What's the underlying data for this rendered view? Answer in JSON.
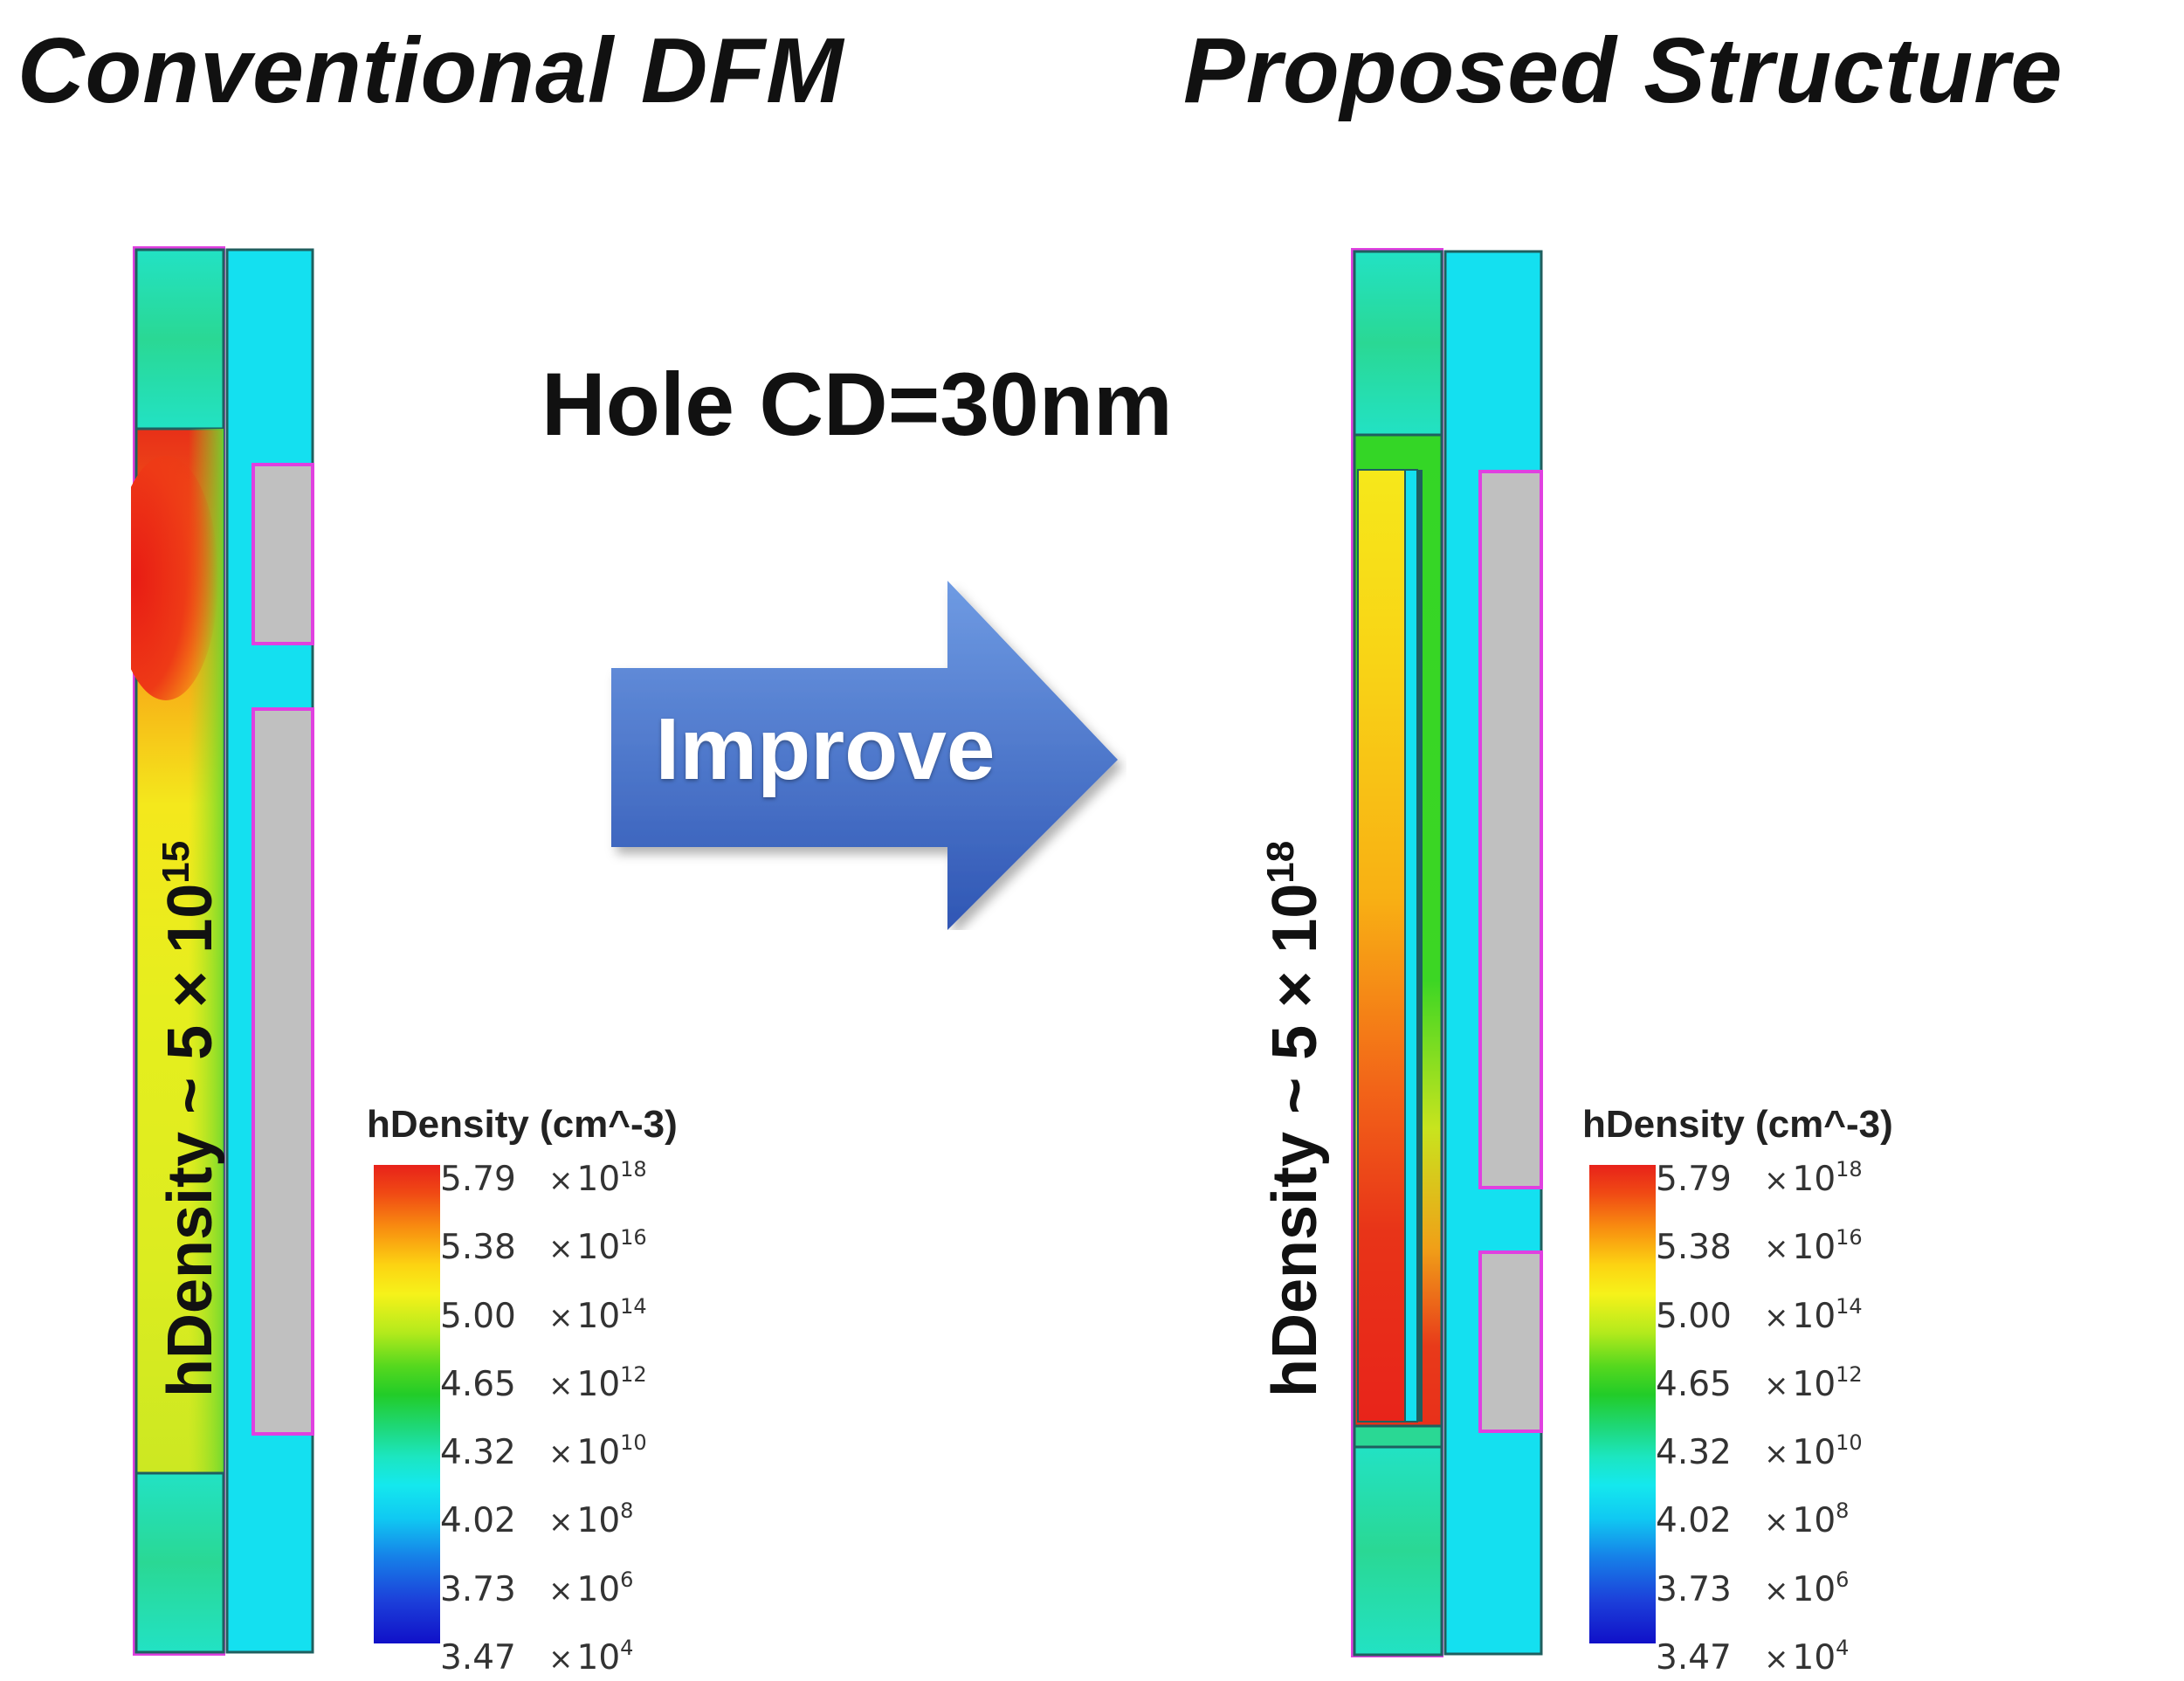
{
  "titles": {
    "left": "Conventional DFM",
    "right": "Proposed Structure"
  },
  "hole_cd": "Hole CD=30nm",
  "arrow": {
    "label": "Improve",
    "color_light": "#6f9be3",
    "color_dark": "#2f56b4"
  },
  "annotations": {
    "left": {
      "base": "hDensity ~ 5 × 10",
      "exp": "15"
    },
    "right": {
      "base": "hDensity ~ 5 × 10",
      "exp": "18"
    }
  },
  "legend": {
    "title": "hDensity (cm^-3)",
    "times": "×",
    "base": "10",
    "ticks": [
      {
        "value": "5.79",
        "exp": "18"
      },
      {
        "value": "5.38",
        "exp": "16"
      },
      {
        "value": "5.00",
        "exp": "14"
      },
      {
        "value": "4.65",
        "exp": "12"
      },
      {
        "value": "4.32",
        "exp": "10"
      },
      {
        "value": "4.02",
        "exp": "8"
      },
      {
        "value": "3.73",
        "exp": "6"
      },
      {
        "value": "3.47",
        "exp": "4"
      }
    ]
  },
  "colors": {
    "outline": "#1f5f5f",
    "gate": "#c0c0c0",
    "gate_border": "#e040e0",
    "cyan": "#14e0f0",
    "teal": "#1fe0b0"
  }
}
